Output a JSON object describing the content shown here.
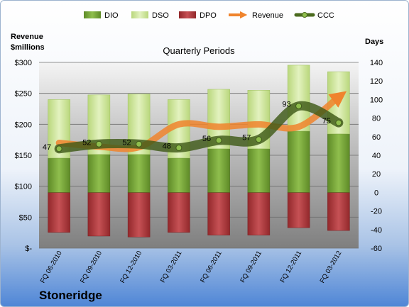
{
  "chart_data": {
    "type": "bar",
    "subtitle": "Quarterly Periods",
    "left_axis_title": [
      "Revenue",
      "$millions"
    ],
    "right_axis_title": "Days",
    "company": "Stoneridge",
    "categories": [
      "FQ 06-2010",
      "FQ 09-2010",
      "FQ 12-2010",
      "FQ 03-2011",
      "FQ 06-2011",
      "FQ 09-2011",
      "FQ 12-2011",
      "FQ 03-2012"
    ],
    "left_ticks": [
      "$-",
      "$50",
      "$100",
      "$150",
      "$200",
      "$250",
      "$300"
    ],
    "left_ylim": [
      0,
      300
    ],
    "right_ticks": [
      "-60",
      "-40",
      "-20",
      "0",
      "20",
      "40",
      "60",
      "80",
      "100",
      "120",
      "140"
    ],
    "right_ylim": [
      -60,
      140
    ],
    "series": [
      {
        "name": "DIO",
        "axis": "days",
        "color": "#77a33b",
        "values": [
          37,
          41,
          41,
          37,
          47,
          47,
          66,
          63
        ]
      },
      {
        "name": "DSO",
        "axis": "days",
        "color": "#cde59a",
        "values": [
          63,
          64,
          65,
          63,
          64,
          63,
          71,
          67
        ]
      },
      {
        "name": "DPO",
        "axis": "days",
        "color": "#b2393c",
        "values": [
          -43,
          -47,
          -48,
          -43,
          -46,
          -46,
          -38,
          -41
        ]
      },
      {
        "name": "Revenue",
        "axis": "revenue",
        "color": "#f0842d",
        "values": [
          170,
          164,
          163,
          200,
          196,
          200,
          196,
          244
        ]
      },
      {
        "name": "CCC",
        "axis": "days",
        "color": "#4b6b1f",
        "values": [
          47,
          52,
          52,
          48,
          56,
          57,
          93,
          75
        ]
      }
    ],
    "ccc_labels": [
      "47",
      "52",
      "52",
      "48",
      "56",
      "57",
      "93",
      "75"
    ],
    "legend": [
      "DIO",
      "DSO",
      "DPO",
      "Revenue",
      "CCC"
    ],
    "legend_position": "top",
    "grid": true,
    "plot_area_color": "#808080"
  }
}
